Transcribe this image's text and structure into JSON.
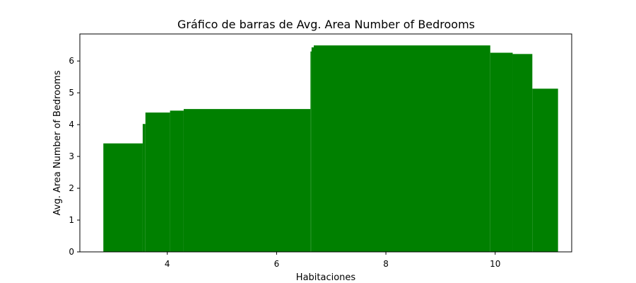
{
  "chart_data": {
    "type": "bar",
    "title": "Gráfico de barras de Avg. Area Number of Bedrooms",
    "xlabel": "Habitaciones",
    "ylabel": "Avg. Area Number of Bedrooms",
    "xlim": [
      2.4,
      11.4
    ],
    "ylim": [
      0,
      6.85
    ],
    "xticks": [
      4,
      6,
      8,
      10
    ],
    "yticks": [
      0,
      1,
      2,
      3,
      4,
      5,
      6
    ],
    "bar_color": "#008000",
    "grid": false,
    "bars": [
      {
        "x0": 2.83,
        "x1": 3.55,
        "value": 3.41
      },
      {
        "x0": 3.55,
        "x1": 3.6,
        "value": 4.02
      },
      {
        "x0": 3.6,
        "x1": 4.05,
        "value": 4.38
      },
      {
        "x0": 4.05,
        "x1": 4.3,
        "value": 4.44
      },
      {
        "x0": 4.3,
        "x1": 6.62,
        "value": 4.49
      },
      {
        "x0": 6.62,
        "x1": 6.64,
        "value": 6.3
      },
      {
        "x0": 6.64,
        "x1": 6.68,
        "value": 6.43
      },
      {
        "x0": 6.68,
        "x1": 9.91,
        "value": 6.49
      },
      {
        "x0": 9.91,
        "x1": 10.32,
        "value": 6.26
      },
      {
        "x0": 10.32,
        "x1": 10.68,
        "value": 6.22
      },
      {
        "x0": 10.68,
        "x1": 11.15,
        "value": 5.13
      }
    ]
  }
}
